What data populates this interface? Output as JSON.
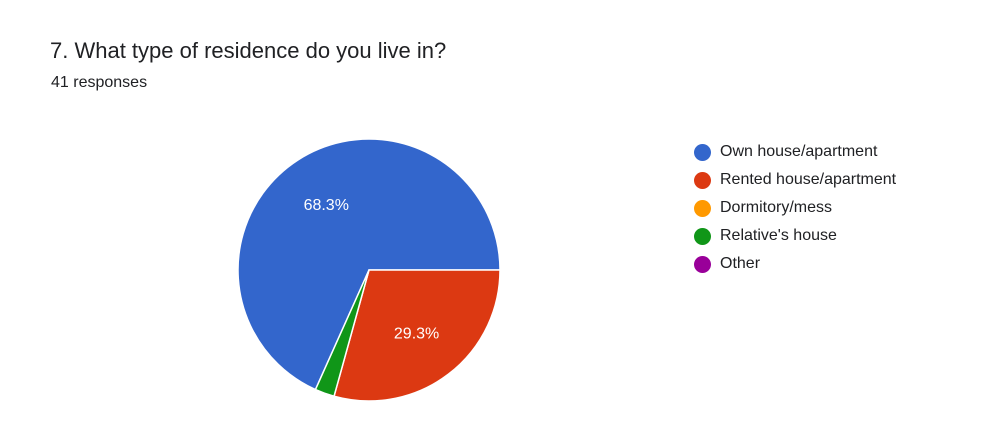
{
  "question": {
    "title": "7. What type of residence do you live in?",
    "responses": "41 responses"
  },
  "chart_data": {
    "type": "pie",
    "categories": [
      "Own house/apartment",
      "Rented house/apartment",
      "Dormitory/mess",
      "Relative's house",
      "Other"
    ],
    "values": [
      68.3,
      29.3,
      0,
      2.4,
      0
    ],
    "colors": [
      "#3366cc",
      "#dc3912",
      "#ff9900",
      "#109618",
      "#990099"
    ],
    "slice_labels": [
      "68.3%",
      "29.3%",
      "",
      "",
      ""
    ],
    "legend_position": "right"
  }
}
